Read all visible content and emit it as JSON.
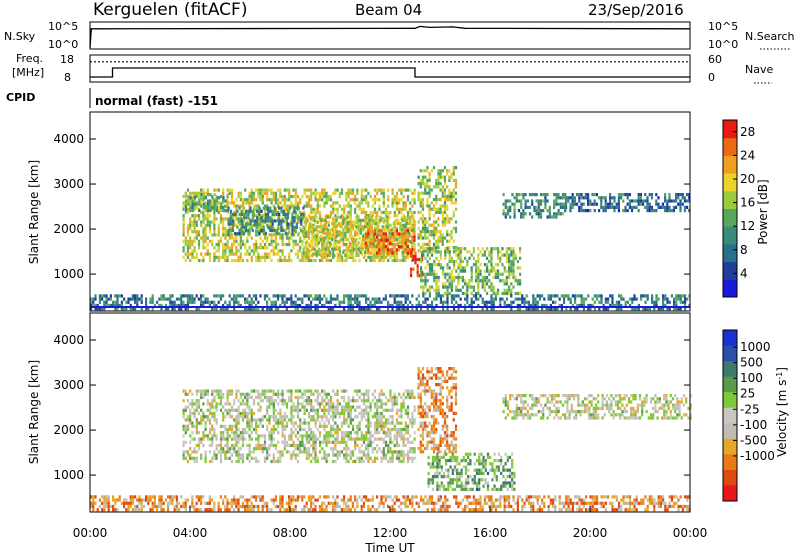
{
  "header": {
    "station": "Kerguelen (fitACF)",
    "beam": "Beam 04",
    "date": "23/Sep/2016"
  },
  "top_panels": {
    "nsky_label": "N.Sky",
    "nsky_ticks": [
      "10^5",
      "10^0"
    ],
    "nsearch_label": "N.Search",
    "nsearch_ticks": [
      "10^5",
      "10^0"
    ],
    "freq_label_1": "Freq.",
    "freq_label_2": "[MHz]",
    "freq_ticks": [
      "18",
      "8"
    ],
    "nave_label": "Nave",
    "nave_ticks": [
      "60",
      "0"
    ],
    "cpid_label": "CPID",
    "cpid_text": "normal (fast) -151"
  },
  "colors": {
    "power_scale": [
      "#1a1adb",
      "#1f3f9c",
      "#2c6e8e",
      "#3a8a7a",
      "#56a85a",
      "#9ccb3e",
      "#e8d42a",
      "#f0a020",
      "#ec6a14",
      "#e81c10"
    ],
    "velocity_scale": [
      "#1c2fd0",
      "#2a4fa8",
      "#3e7a6e",
      "#5a9a4a",
      "#7ec83a",
      "#c8c8c0",
      "#c0bcb4",
      "#e8a628",
      "#e87a18",
      "#e04a10",
      "#e81818"
    ]
  },
  "chart_data": [
    {
      "type": "line",
      "name": "N.Sky / N.Search",
      "x_range_hours": [
        0,
        24
      ],
      "ylabel": "N.Sky",
      "ylabel_right": "N.Search",
      "y_ticks": [
        "10^5",
        "10^0"
      ],
      "series": [
        {
          "name": "N.Sky",
          "x": [
            0,
            0.05,
            0.1,
            13,
            13.2,
            13.6,
            14.5,
            15,
            24
          ],
          "y": [
            0,
            4,
            4,
            4.1,
            4.5,
            4.3,
            4.4,
            4.1,
            4
          ]
        }
      ]
    },
    {
      "type": "line",
      "name": "Freq / Nave",
      "x_range_hours": [
        0,
        24
      ],
      "ylabel": "Freq. [MHz]",
      "ylabel_right": "Nave",
      "y_ticks": [
        "18",
        "8"
      ],
      "y_ticks_right": [
        "60",
        "0"
      ],
      "series": [
        {
          "name": "Freq",
          "x": [
            0,
            0.9,
            0.9,
            13,
            13,
            24
          ],
          "y": [
            9.6,
            9.6,
            13.2,
            13.2,
            9.6,
            9.6
          ]
        },
        {
          "name": "Nave",
          "style": "dotted",
          "x": [
            0,
            0.9,
            0.9,
            13,
            13,
            24
          ],
          "y": [
            46,
            46,
            46,
            46,
            46,
            46
          ]
        }
      ]
    },
    {
      "type": "heatmap",
      "name": "Power",
      "ylabel": "Slant Range [km]",
      "ylim": [
        180,
        4600
      ],
      "y_ticks": [
        1000,
        2000,
        3000,
        4000
      ],
      "x_range_hours": [
        0,
        24
      ],
      "colorbar_label": "Power [dB]",
      "colorbar_ticks": [
        4,
        8,
        12,
        16,
        20,
        24,
        28
      ],
      "colorbar_range": [
        0,
        30
      ],
      "regions": [
        {
          "t0": 3.7,
          "t1": 13.0,
          "r0": 1300,
          "r1": 2900,
          "level": 0.6
        },
        {
          "t0": 3.8,
          "t1": 5.5,
          "r0": 2400,
          "r1": 2800,
          "level": 0.45
        },
        {
          "t0": 5.5,
          "t1": 8.5,
          "r0": 1900,
          "r1": 2500,
          "level": 0.35
        },
        {
          "t0": 8.5,
          "t1": 12.9,
          "r0": 1400,
          "r1": 2300,
          "level": 0.6
        },
        {
          "t0": 11.0,
          "t1": 13.0,
          "r0": 1450,
          "r1": 2000,
          "level": 0.85
        },
        {
          "t0": 12.8,
          "t1": 13.3,
          "r0": 1000,
          "r1": 1500,
          "level": 0.97
        },
        {
          "t0": 13.1,
          "t1": 14.6,
          "r0": 1500,
          "r1": 3400,
          "level": 0.55
        },
        {
          "t0": 13.2,
          "t1": 17.2,
          "r0": 600,
          "r1": 1600,
          "level": 0.5
        },
        {
          "t0": 16.5,
          "t1": 19.0,
          "r0": 2300,
          "r1": 2800,
          "level": 0.35
        },
        {
          "t0": 19.0,
          "t1": 24.0,
          "r0": 2400,
          "r1": 2800,
          "level": 0.25
        },
        {
          "t0": 0.0,
          "t1": 24.0,
          "r0": 200,
          "r1": 550,
          "level": 0.3
        }
      ]
    },
    {
      "type": "heatmap",
      "name": "Velocity",
      "ylabel": "Slant Range [km]",
      "ylim": [
        180,
        4600
      ],
      "y_ticks": [
        1000,
        2000,
        3000,
        4000
      ],
      "x_range_hours": [
        0,
        24
      ],
      "x_ticks": [
        "00:00",
        "04:00",
        "08:00",
        "12:00",
        "16:00",
        "20:00",
        "00:00"
      ],
      "xlabel": "Time UT",
      "colorbar_label": "Velocity [m s-1]",
      "colorbar_ticks": [
        "1000",
        "500",
        "100",
        "25",
        "-25",
        "-100",
        "-500",
        "-1000"
      ],
      "regions": [
        {
          "t0": 3.7,
          "t1": 13.0,
          "r0": 1300,
          "r1": 2900,
          "level": 0.5
        },
        {
          "t0": 13.1,
          "t1": 14.6,
          "r0": 1500,
          "r1": 3400,
          "level": 0.72
        },
        {
          "t0": 13.5,
          "t1": 17.0,
          "r0": 700,
          "r1": 1500,
          "level": 0.35
        },
        {
          "t0": 16.5,
          "t1": 24.0,
          "r0": 2300,
          "r1": 2800,
          "level": 0.52
        },
        {
          "t0": 0.0,
          "t1": 24.0,
          "r0": 200,
          "r1": 550,
          "level": 0.72
        }
      ]
    }
  ]
}
